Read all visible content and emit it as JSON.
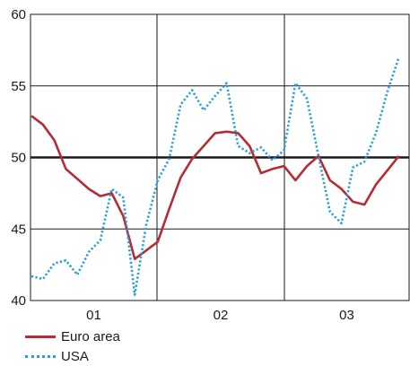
{
  "chart_data": {
    "type": "line",
    "title": "",
    "xlabel": "",
    "ylabel": "",
    "ylim": [
      40,
      60
    ],
    "y_ticks": [
      40,
      45,
      50,
      55,
      60
    ],
    "y_tick_labels": [
      "40",
      "45",
      "50",
      "55",
      "60"
    ],
    "x_period_labels": [
      "01",
      "02",
      "03"
    ],
    "grid": true,
    "reference_line": 50,
    "series": [
      {
        "name": "Euro area",
        "color": "#b22d35",
        "style": "solid",
        "x": [
          0,
          1,
          2,
          3,
          4,
          5,
          6,
          7,
          8,
          9,
          10,
          11,
          12,
          13,
          14,
          15,
          16,
          17,
          18,
          19,
          20,
          21,
          22,
          23,
          24,
          25,
          26,
          27,
          28,
          29,
          30,
          31,
          32
        ],
        "values": [
          52.9,
          52.3,
          51.2,
          49.2,
          48.5,
          47.8,
          47.3,
          47.5,
          45.9,
          42.9,
          43.5,
          44.1,
          46.4,
          48.6,
          49.9,
          50.8,
          51.7,
          51.8,
          51.7,
          50.8,
          48.9,
          49.2,
          49.4,
          48.4,
          49.4,
          50.1,
          48.4,
          47.8,
          46.9,
          46.7,
          48.1,
          49.1,
          50.1
        ]
      },
      {
        "name": "USA",
        "color": "#2a9fd8",
        "style": "dotted",
        "x": [
          0,
          1,
          2,
          3,
          4,
          5,
          6,
          7,
          8,
          9,
          10,
          11,
          12,
          13,
          14,
          15,
          16,
          17,
          18,
          19,
          20,
          21,
          22,
          23,
          24,
          25,
          26,
          27,
          28,
          29,
          30,
          31,
          32
        ],
        "values": [
          41.7,
          41.5,
          42.6,
          42.8,
          41.8,
          43.4,
          44.2,
          47.8,
          47.2,
          40.4,
          45.3,
          48.4,
          49.9,
          53.7,
          54.7,
          53.3,
          54.3,
          55.2,
          50.8,
          50.3,
          50.7,
          49.8,
          50.5,
          55.2,
          54.1,
          50.1,
          46.2,
          45.4,
          49.3,
          49.7,
          51.7,
          54.6,
          57.0
        ]
      }
    ]
  },
  "legend": {
    "items": [
      {
        "label": "Euro area",
        "color": "#b22d35"
      },
      {
        "label": "USA",
        "color": "#2a9fd8"
      }
    ]
  }
}
